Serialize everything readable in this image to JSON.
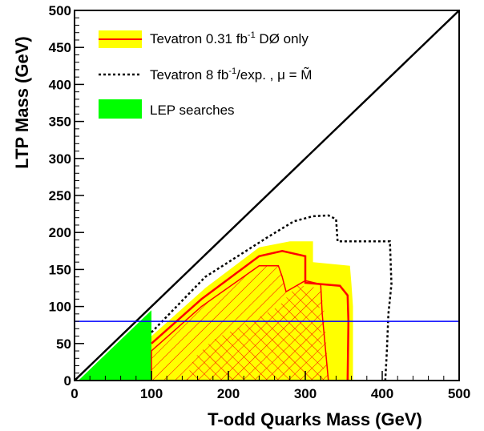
{
  "chart_data": {
    "type": "area",
    "xlabel": "T-odd Quarks  Mass (GeV)",
    "ylabel": "LTP Mass (GeV)",
    "xlim": [
      0,
      500
    ],
    "ylim": [
      0,
      500
    ],
    "x_ticks": [
      "0",
      "100",
      "200",
      "300",
      "400",
      "500"
    ],
    "y_ticks": [
      "0",
      "50",
      "100",
      "150",
      "200",
      "250",
      "300",
      "350",
      "400",
      "450",
      "500"
    ],
    "x_tick_values": [
      0,
      100,
      200,
      300,
      400,
      500
    ],
    "y_tick_values": [
      0,
      50,
      100,
      150,
      200,
      250,
      300,
      350,
      400,
      450,
      500
    ],
    "grid": false,
    "legend_position": "top-left",
    "legend": {
      "d0": {
        "base": "Tevatron 0.31 fb",
        "sup": "-1",
        "tail": " DØ only"
      },
      "tev8": {
        "base": "Tevatron 8 fb",
        "sup": "-1",
        "tail": "/exp. , μ = M̃"
      },
      "lep": {
        "label": "LEP searches"
      }
    },
    "colors": {
      "yellow_band": "#ffff00",
      "d0_line": "#ff0000",
      "lep": "#00ff00",
      "hline": "#0000ff",
      "diagonal": "#000000",
      "tev8_line": "#000000"
    },
    "series": {
      "lep_region": [
        [
          5,
          0
        ],
        [
          100,
          0
        ],
        [
          100,
          95
        ]
      ],
      "diagonal": [
        [
          0,
          0
        ],
        [
          500,
          500
        ]
      ],
      "lep_limit_y": 80,
      "tevatron8_dotted": [
        [
          100,
          65
        ],
        [
          170,
          140
        ],
        [
          250,
          193
        ],
        [
          285,
          215
        ],
        [
          310,
          222
        ],
        [
          330,
          223
        ],
        [
          340,
          218
        ],
        [
          342,
          188
        ],
        [
          410,
          188
        ],
        [
          412,
          130
        ],
        [
          408,
          90
        ],
        [
          406,
          40
        ],
        [
          404,
          0
        ]
      ],
      "yellow_band": [
        [
          100,
          30
        ],
        [
          100,
          60
        ],
        [
          170,
          125
        ],
        [
          240,
          180
        ],
        [
          280,
          188
        ],
        [
          310,
          188
        ],
        [
          310,
          160
        ],
        [
          358,
          155
        ],
        [
          360,
          130
        ],
        [
          362,
          100
        ],
        [
          362,
          0
        ],
        [
          100,
          0
        ]
      ],
      "d0_contour": [
        [
          100,
          50
        ],
        [
          165,
          110
        ],
        [
          240,
          168
        ],
        [
          270,
          175
        ],
        [
          300,
          168
        ],
        [
          300,
          132
        ],
        [
          345,
          128
        ],
        [
          355,
          115
        ],
        [
          356,
          80
        ],
        [
          355,
          0
        ]
      ],
      "d0_inner_excluded": [
        [
          100,
          0
        ],
        [
          100,
          40
        ],
        [
          165,
          100
        ],
        [
          240,
          155
        ],
        [
          265,
          155
        ],
        [
          270,
          140
        ],
        [
          275,
          120
        ],
        [
          300,
          135
        ],
        [
          320,
          130
        ],
        [
          322,
          90
        ],
        [
          330,
          0
        ]
      ],
      "d0_hatch_excluded": [
        [
          100,
          0
        ],
        [
          100,
          40
        ],
        [
          165,
          100
        ],
        [
          240,
          155
        ],
        [
          265,
          155
        ],
        [
          270,
          140
        ],
        [
          275,
          120
        ],
        [
          295,
          128
        ],
        [
          320,
          125
        ],
        [
          325,
          90
        ],
        [
          330,
          0
        ]
      ],
      "d0_crosshatch": [
        [
          145,
          0
        ],
        [
          155,
          30
        ],
        [
          180,
          55
        ],
        [
          230,
          80
        ],
        [
          265,
          100
        ],
        [
          295,
          135
        ],
        [
          315,
          115
        ],
        [
          320,
          90
        ],
        [
          322,
          40
        ],
        [
          325,
          0
        ]
      ]
    }
  }
}
